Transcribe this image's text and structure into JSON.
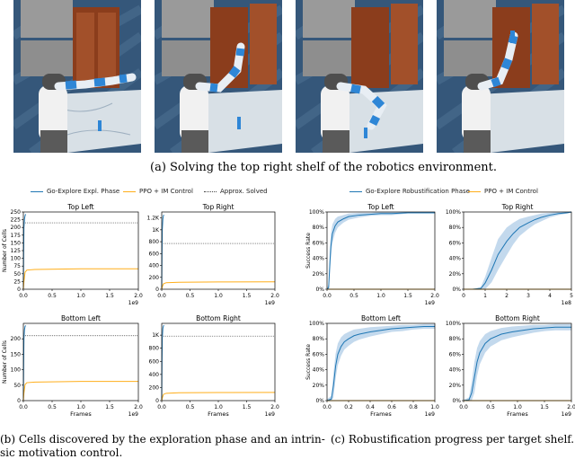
{
  "figure": {
    "caption_a": "(a) Solving the top right shelf of the robotics environment.",
    "caption_b_line1": "(b) Cells discovered by the exploration phase and an intrin-",
    "caption_b_line2": "sic motivation control.",
    "caption_c": "(c) Robustification progress per target shelf."
  },
  "colors": {
    "blue": "#1f77b4",
    "orange": "#ffae1a",
    "gray": "#444444",
    "band": "#a9c9e6"
  },
  "legend_b": [
    {
      "label": "Go-Explore Expl. Phase",
      "color": "#1f77b4",
      "style": "solid"
    },
    {
      "label": "PPO + IM Control",
      "color": "#ffae1a",
      "style": "solid"
    },
    {
      "label": "Approx. Solved",
      "color": "#444444",
      "style": "dotted"
    }
  ],
  "legend_c": [
    {
      "label": "Go-Explore Robustification Phase",
      "color": "#1f77b4",
      "style": "solid"
    },
    {
      "label": "PPO + IM Control",
      "color": "#ffae1a",
      "style": "solid"
    }
  ],
  "chart_data": [
    {
      "type": "line",
      "panel": "b",
      "title": "Top Left",
      "ylabel": "Number of Cells",
      "xlabel": "",
      "xlim": [
        0,
        2.0
      ],
      "ylim": [
        0,
        250
      ],
      "xticks": [
        0.0,
        0.5,
        1.0,
        1.5,
        2.0
      ],
      "xtick_labels": [
        "0.0",
        "0.5",
        "1.0",
        "1.5",
        "2.0"
      ],
      "yticks": [
        0,
        25,
        50,
        75,
        100,
        125,
        150,
        175,
        200,
        225,
        250
      ],
      "ytick_labels": [
        "0",
        "25",
        "50",
        "75",
        "100",
        "125",
        "150",
        "175",
        "200",
        "225",
        "250"
      ],
      "x_multiplier": "1e9",
      "approx_solved": 215,
      "series": [
        {
          "name": "Go-Explore Expl. Phase",
          "color": "#1f77b4",
          "x": [
            0.0,
            0.005,
            0.01,
            0.02,
            0.03,
            0.04
          ],
          "y": [
            0,
            120,
            200,
            228,
            238,
            243
          ]
        },
        {
          "name": "PPO + IM Control",
          "color": "#ffae1a",
          "x": [
            0.0,
            0.01,
            0.03,
            0.06,
            0.2,
            1.0,
            2.0
          ],
          "y": [
            0,
            25,
            55,
            62,
            64,
            66,
            66
          ]
        }
      ]
    },
    {
      "type": "line",
      "panel": "b",
      "title": "Top Right",
      "ylabel": "",
      "xlabel": "",
      "xlim": [
        0,
        2.0
      ],
      "ylim": [
        0,
        1300
      ],
      "xticks": [
        0.0,
        0.5,
        1.0,
        1.5,
        2.0
      ],
      "xtick_labels": [
        "0.0",
        "0.5",
        "1.0",
        "1.5",
        "2.0"
      ],
      "yticks": [
        0,
        200,
        400,
        600,
        800,
        1000,
        1200
      ],
      "ytick_labels": [
        "0",
        "200",
        "400",
        "600",
        "800",
        "1K",
        "1.2K"
      ],
      "x_multiplier": "1e9",
      "approx_solved": 770,
      "series": [
        {
          "name": "Go-Explore Expl. Phase",
          "color": "#1f77b4",
          "x": [
            0.0,
            0.005,
            0.01,
            0.02,
            0.03,
            0.04
          ],
          "y": [
            0,
            600,
            1000,
            1180,
            1240,
            1250
          ]
        },
        {
          "name": "PPO + IM Control",
          "color": "#ffae1a",
          "x": [
            0.0,
            0.01,
            0.03,
            0.08,
            0.3,
            1.0,
            2.0
          ],
          "y": [
            0,
            40,
            90,
            110,
            118,
            122,
            124
          ]
        }
      ]
    },
    {
      "type": "line",
      "panel": "b",
      "title": "Bottom Left",
      "ylabel": "Number of Cells",
      "xlabel": "Frames",
      "xlim": [
        0,
        2.0
      ],
      "ylim": [
        0,
        250
      ],
      "xticks": [
        0.0,
        0.5,
        1.0,
        1.5,
        2.0
      ],
      "xtick_labels": [
        "0.0",
        "0.5",
        "1.0",
        "1.5",
        "2.0"
      ],
      "yticks": [
        0,
        50,
        100,
        150,
        200
      ],
      "ytick_labels": [
        "0",
        "50",
        "100",
        "150",
        "200"
      ],
      "x_multiplier": "1e9",
      "approx_solved": 210,
      "series": [
        {
          "name": "Go-Explore Expl. Phase",
          "color": "#1f77b4",
          "x": [
            0.0,
            0.005,
            0.01,
            0.02,
            0.03,
            0.04
          ],
          "y": [
            0,
            120,
            200,
            230,
            240,
            243
          ]
        },
        {
          "name": "PPO + IM Control",
          "color": "#ffae1a",
          "x": [
            0.0,
            0.01,
            0.03,
            0.06,
            0.2,
            1.0,
            2.0
          ],
          "y": [
            0,
            25,
            52,
            58,
            60,
            62,
            62
          ]
        }
      ]
    },
    {
      "type": "line",
      "panel": "b",
      "title": "Bottom Right",
      "ylabel": "",
      "xlabel": "Frames",
      "xlim": [
        0,
        2.0
      ],
      "ylim": [
        0,
        1180
      ],
      "xticks": [
        0.0,
        0.5,
        1.0,
        1.5,
        2.0
      ],
      "xtick_labels": [
        "0.0",
        "0.5",
        "1.0",
        "1.5",
        "2.0"
      ],
      "yticks": [
        0,
        200,
        400,
        600,
        800,
        1000
      ],
      "ytick_labels": [
        "0",
        "200",
        "400",
        "600",
        "800",
        "1K"
      ],
      "x_multiplier": "1e9",
      "approx_solved": 985,
      "series": [
        {
          "name": "Go-Explore Expl. Phase",
          "color": "#1f77b4",
          "x": [
            0.0,
            0.005,
            0.01,
            0.02,
            0.03,
            0.04
          ],
          "y": [
            0,
            600,
            950,
            1100,
            1140,
            1150
          ]
        },
        {
          "name": "PPO + IM Control",
          "color": "#ffae1a",
          "x": [
            0.0,
            0.01,
            0.03,
            0.08,
            0.3,
            1.0,
            2.0
          ],
          "y": [
            0,
            40,
            95,
            112,
            120,
            124,
            125
          ]
        }
      ]
    },
    {
      "type": "line",
      "panel": "c",
      "title": "Top Left",
      "ylabel": "Success Rate",
      "xlabel": "",
      "xlim": [
        0,
        2.0
      ],
      "ylim": [
        0,
        100
      ],
      "xticks": [
        0.0,
        0.5,
        1.0,
        1.5,
        2.0
      ],
      "xtick_labels": [
        "0.0",
        "0.5",
        "1.0",
        "1.5",
        "2.0"
      ],
      "yticks": [
        0,
        20,
        40,
        60,
        80,
        100
      ],
      "ytick_labels": [
        "0%",
        "20%",
        "40%",
        "60%",
        "80%",
        "100%"
      ],
      "x_multiplier": "1e9",
      "series": [
        {
          "name": "Go-Explore Robustification Phase",
          "color": "#1f77b4",
          "x": [
            0.0,
            0.03,
            0.05,
            0.07,
            0.1,
            0.15,
            0.2,
            0.3,
            0.4,
            0.6,
            0.8,
            1.0,
            1.2,
            1.5,
            1.8,
            2.0
          ],
          "y": [
            0,
            2,
            30,
            55,
            72,
            82,
            87,
            91,
            94,
            96,
            97,
            98,
            98,
            99,
            99,
            99
          ],
          "band": [
            2,
            4,
            14,
            16,
            12,
            9,
            7,
            5,
            4,
            3,
            2,
            2,
            2,
            1,
            1,
            1
          ]
        },
        {
          "name": "PPO + IM Control",
          "color": "#ffae1a",
          "x": [
            0.0,
            2.0
          ],
          "y": [
            0,
            0
          ]
        }
      ]
    },
    {
      "type": "line",
      "panel": "c",
      "title": "Top Right",
      "ylabel": "",
      "xlabel": "",
      "xlim": [
        0,
        5.0
      ],
      "ylim": [
        0,
        100
      ],
      "xticks": [
        0,
        1,
        2,
        3,
        4,
        5
      ],
      "xtick_labels": [
        "0",
        "1",
        "2",
        "3",
        "4",
        "5"
      ],
      "yticks": [
        0,
        20,
        40,
        60,
        80,
        100
      ],
      "ytick_labels": [
        "0%",
        "20%",
        "40%",
        "60%",
        "80%",
        "100%"
      ],
      "x_multiplier": "1e8",
      "series": [
        {
          "name": "Go-Explore Robustification Phase",
          "color": "#1f77b4",
          "x": [
            0.0,
            0.4,
            0.8,
            1.0,
            1.3,
            1.6,
            2.0,
            2.3,
            2.6,
            3.0,
            3.3,
            3.6,
            4.0,
            4.4,
            4.8,
            5.0
          ],
          "y": [
            0,
            0,
            1,
            8,
            25,
            45,
            62,
            72,
            80,
            86,
            90,
            93,
            96,
            98,
            99,
            100
          ],
          "band": [
            0,
            0,
            2,
            8,
            16,
            20,
            18,
            14,
            11,
            8,
            6,
            5,
            3,
            2,
            1,
            1
          ]
        },
        {
          "name": "PPO + IM Control",
          "color": "#ffae1a",
          "x": [
            0.0,
            5.0
          ],
          "y": [
            0,
            0
          ]
        }
      ]
    },
    {
      "type": "line",
      "panel": "c",
      "title": "Bottom Left",
      "ylabel": "Success Rate",
      "xlabel": "Frames",
      "xlim": [
        0,
        1.0
      ],
      "ylim": [
        0,
        100
      ],
      "xticks": [
        0.0,
        0.2,
        0.4,
        0.6,
        0.8,
        1.0
      ],
      "xtick_labels": [
        "0.0",
        "0.2",
        "0.4",
        "0.6",
        "0.8",
        "1.0"
      ],
      "yticks": [
        0,
        20,
        40,
        60,
        80,
        100
      ],
      "ytick_labels": [
        "0%",
        "20%",
        "40%",
        "60%",
        "80%",
        "100%"
      ],
      "x_multiplier": "1e9",
      "series": [
        {
          "name": "Go-Explore Robustification Phase",
          "color": "#1f77b4",
          "x": [
            0.0,
            0.04,
            0.06,
            0.08,
            0.1,
            0.13,
            0.16,
            0.2,
            0.25,
            0.3,
            0.4,
            0.5,
            0.6,
            0.7,
            0.8,
            0.9,
            1.0
          ],
          "y": [
            0,
            2,
            20,
            45,
            60,
            70,
            76,
            80,
            84,
            86,
            89,
            91,
            93,
            94,
            95,
            96,
            96
          ],
          "band": [
            2,
            4,
            16,
            16,
            14,
            12,
            10,
            9,
            8,
            7,
            6,
            5,
            4,
            4,
            3,
            3,
            3
          ]
        },
        {
          "name": "PPO + IM Control",
          "color": "#ffae1a",
          "x": [
            0.0,
            1.0
          ],
          "y": [
            0,
            0
          ]
        }
      ]
    },
    {
      "type": "line",
      "panel": "c",
      "title": "Bottom Right",
      "ylabel": "",
      "xlabel": "Frames",
      "xlim": [
        0,
        2.0
      ],
      "ylim": [
        0,
        100
      ],
      "xticks": [
        0.0,
        0.5,
        1.0,
        1.5,
        2.0
      ],
      "xtick_labels": [
        "0.0",
        "0.5",
        "1.0",
        "1.5",
        "2.0"
      ],
      "yticks": [
        0,
        20,
        40,
        60,
        80,
        100
      ],
      "ytick_labels": [
        "0%",
        "20%",
        "40%",
        "60%",
        "80%",
        "100%"
      ],
      "x_multiplier": "1e9",
      "series": [
        {
          "name": "Go-Explore Robustification Phase",
          "color": "#1f77b4",
          "x": [
            0.0,
            0.1,
            0.15,
            0.2,
            0.25,
            0.3,
            0.4,
            0.5,
            0.7,
            0.9,
            1.1,
            1.3,
            1.5,
            1.7,
            2.0
          ],
          "y": [
            0,
            1,
            10,
            30,
            50,
            62,
            74,
            80,
            86,
            89,
            91,
            93,
            94,
            95,
            95
          ],
          "band": [
            1,
            3,
            14,
            20,
            18,
            15,
            12,
            10,
            8,
            7,
            6,
            5,
            4,
            4,
            4
          ]
        },
        {
          "name": "PPO + IM Control",
          "color": "#ffae1a",
          "x": [
            0.0,
            2.0
          ],
          "y": [
            0,
            0
          ]
        }
      ]
    }
  ]
}
